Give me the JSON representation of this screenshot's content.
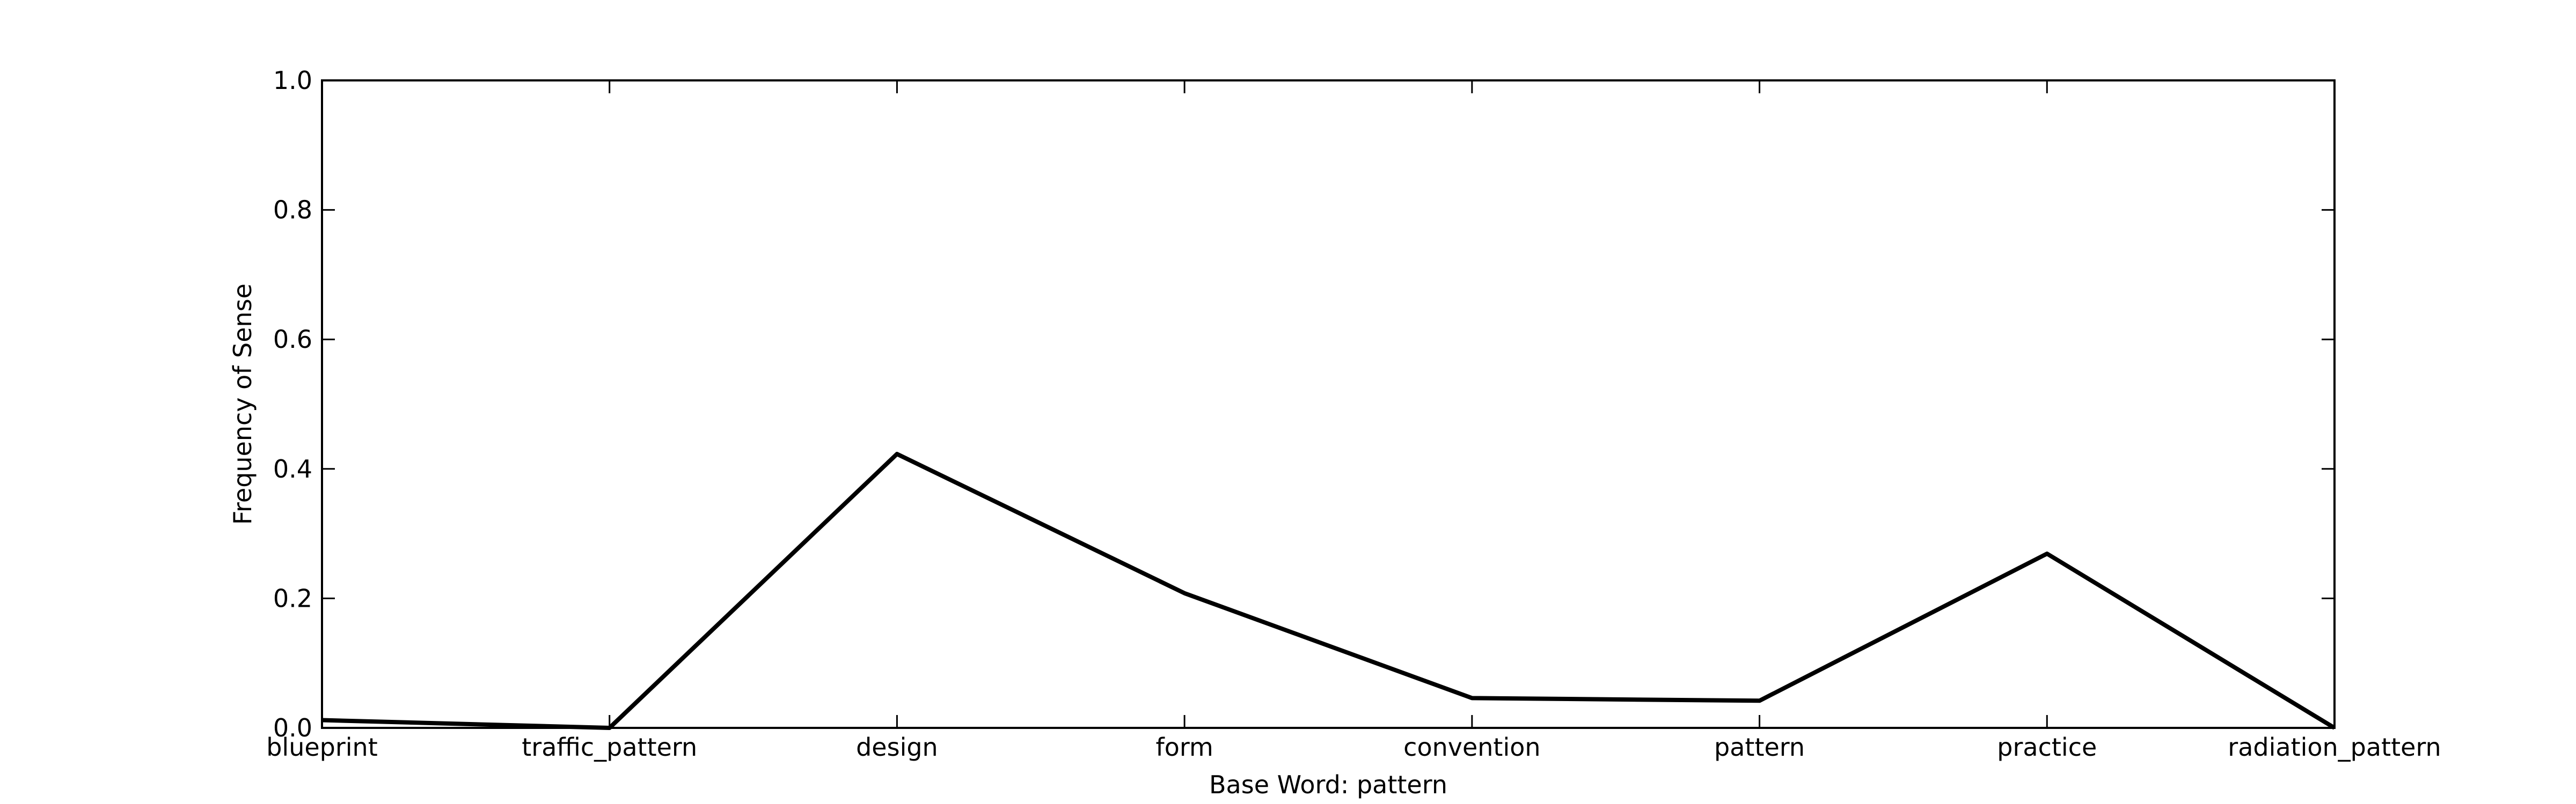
{
  "chart_data": {
    "type": "line",
    "xlabel": "Base Word: pattern",
    "ylabel": "Frequency of Sense",
    "ylim": [
      0,
      1.0
    ],
    "yticks": [
      "0.0",
      "0.2",
      "0.4",
      "0.6",
      "0.8",
      "1.0"
    ],
    "categories": [
      "blueprint",
      "traffic_pattern",
      "design",
      "form",
      "convention",
      "pattern",
      "practice",
      "radiation_pattern"
    ],
    "series": [
      {
        "values": [
          0.012,
          0.0,
          0.423,
          0.208,
          0.046,
          0.042,
          0.269,
          0.0
        ],
        "color": "#000000"
      }
    ],
    "grid": false,
    "legend": "none"
  }
}
